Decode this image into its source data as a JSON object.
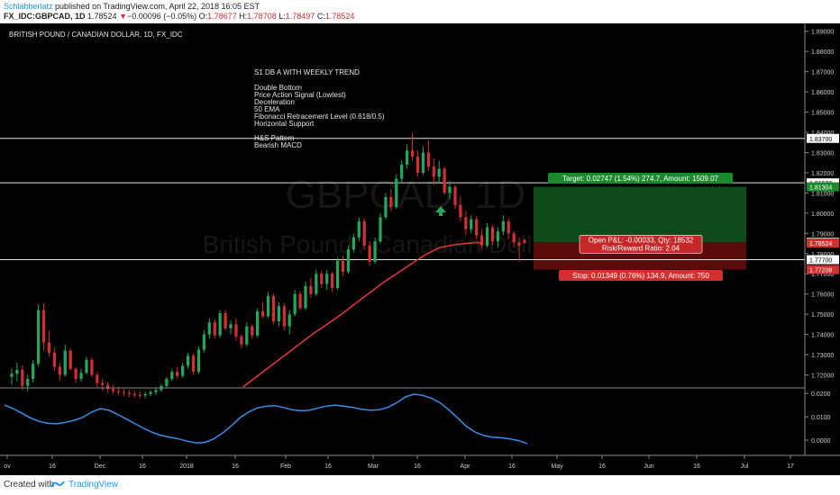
{
  "header": {
    "author": "Schlabberlatz",
    "published": " published on TradingView.com, April 22, 2018 16:05 EST",
    "symbol": "FX_IDC:GBPCAD, 1D",
    "last": "1.78524",
    "arrow": "▼",
    "change": "−0.00096 (−0.05%)",
    "ohlc_o_label": "O:",
    "ohlc_o": "1.78677",
    "ohlc_h_label": "H:",
    "ohlc_h": "1.78708",
    "ohlc_l_label": "L:",
    "ohlc_l": "1.78497",
    "ohlc_c_label": "C:",
    "ohlc_c": "1.78524"
  },
  "footer": {
    "created": "Created with",
    "brand": "TradingView"
  },
  "chart_data": {
    "type": "candlestick",
    "title": "BRITISH POUND / CANADIAN DOLLAR, 1D, FX_IDC",
    "watermark_symbol": "GBPCAD, 1D",
    "watermark_name": "British Pound / Canadian Dollar",
    "colors": {
      "up": "#26a65b",
      "down": "#d32f2f",
      "ema": "#e53935",
      "macd": "#3b8ee8",
      "target_zone": "#0e4a1a",
      "stop_zone": "#5a0b0b"
    },
    "y_ticks": [
      "1.89000",
      "1.88000",
      "1.87000",
      "1.86000",
      "1.85000",
      "1.84000",
      "1.83000",
      "1.82000",
      "1.81000",
      "1.80000",
      "1.79000",
      "1.78000",
      "1.77000",
      "1.76000",
      "1.75000",
      "1.74000",
      "1.73000",
      "1.72000"
    ],
    "ylim": [
      1.714,
      1.893
    ],
    "x_ticks": [
      "ov",
      "16",
      "Dec",
      "16",
      "2018",
      "16",
      "Feb",
      "16",
      "Mar",
      "16",
      "Apr",
      "16",
      "May",
      "16",
      "Jun",
      "16",
      "Jul",
      "17"
    ],
    "price_labels": [
      {
        "text": "1.83700",
        "value": 1.837,
        "kind": "line"
      },
      {
        "text": "1.81500",
        "value": 1.815,
        "kind": "line"
      },
      {
        "text": "1.81304",
        "value": 1.81304,
        "kind": "target"
      },
      {
        "text": "1.78557",
        "value": 1.78557,
        "kind": "line"
      },
      {
        "text": "1.78524",
        "value": 1.78524,
        "kind": "last"
      },
      {
        "text": "1.77700",
        "value": 1.777,
        "kind": "line"
      },
      {
        "text": "1.77208",
        "value": 1.77208,
        "kind": "stop"
      }
    ],
    "horizontal_lines": [
      1.837,
      1.815,
      1.777
    ],
    "annotation_title": "S1 DB A WITH WEEKLY TREND",
    "annotation_lines": [
      "Double Bottom",
      "Price Action Signal (Lowtest)",
      "Deceleration",
      "50 EMA",
      "Fibonacci Retracement Level (0.618/0.5)",
      "Horizontal Support",
      "",
      "H&S Pattern",
      "Bearish MACD"
    ],
    "position": {
      "target_label": "Target: 0.02747 (1.54%) 274.7, Amount: 1509.07",
      "pnl_label": "Open P&L: -0.00033, Qty: 18532",
      "rr_label": "Risk/Reward Ratio: 2.04",
      "stop_label": "Stop: 0.01349 (0.76%) 134.9, Amount: 750",
      "entry": 1.78557,
      "target": 1.81304,
      "stop": 1.77208
    },
    "candles": [
      [
        1.719,
        1.7232,
        1.715,
        1.7205
      ],
      [
        1.7205,
        1.726,
        1.7168,
        1.7225
      ],
      [
        1.7225,
        1.7248,
        1.7125,
        1.7145
      ],
      [
        1.7145,
        1.72,
        1.712,
        1.718
      ],
      [
        1.718,
        1.7275,
        1.7162,
        1.7255
      ],
      [
        1.7255,
        1.755,
        1.724,
        1.752
      ],
      [
        1.752,
        1.7555,
        1.732,
        1.736
      ],
      [
        1.736,
        1.742,
        1.729,
        1.731
      ],
      [
        1.731,
        1.7335,
        1.722,
        1.724
      ],
      [
        1.724,
        1.726,
        1.717,
        1.72
      ],
      [
        1.72,
        1.735,
        1.719,
        1.732
      ],
      [
        1.732,
        1.733,
        1.722,
        1.723
      ],
      [
        1.723,
        1.724,
        1.716,
        1.718
      ],
      [
        1.718,
        1.723,
        1.7165,
        1.721
      ],
      [
        1.721,
        1.729,
        1.72,
        1.7275
      ],
      [
        1.7275,
        1.7285,
        1.719,
        1.72
      ],
      [
        1.72,
        1.7215,
        1.714,
        1.716
      ],
      [
        1.716,
        1.718,
        1.712,
        1.715
      ],
      [
        1.715,
        1.7165,
        1.711,
        1.713
      ],
      [
        1.713,
        1.715,
        1.7105,
        1.712
      ],
      [
        1.712,
        1.714,
        1.71,
        1.7115
      ],
      [
        1.7115,
        1.713,
        1.7095,
        1.711
      ],
      [
        1.711,
        1.7125,
        1.709,
        1.7105
      ],
      [
        1.7105,
        1.712,
        1.7088,
        1.71
      ],
      [
        1.71,
        1.7118,
        1.7085,
        1.7098
      ],
      [
        1.7098,
        1.7115,
        1.7085,
        1.7105
      ],
      [
        1.7105,
        1.7125,
        1.7095,
        1.7115
      ],
      [
        1.7115,
        1.7135,
        1.71,
        1.7125
      ],
      [
        1.7125,
        1.7155,
        1.7115,
        1.7145
      ],
      [
        1.7145,
        1.719,
        1.7135,
        1.718
      ],
      [
        1.718,
        1.723,
        1.717,
        1.7215
      ],
      [
        1.7215,
        1.724,
        1.718,
        1.7195
      ],
      [
        1.7195,
        1.726,
        1.7185,
        1.7245
      ],
      [
        1.7245,
        1.731,
        1.723,
        1.7295
      ],
      [
        1.7295,
        1.7305,
        1.72,
        1.7215
      ],
      [
        1.7215,
        1.734,
        1.7205,
        1.7325
      ],
      [
        1.7325,
        1.742,
        1.731,
        1.74
      ],
      [
        1.74,
        1.748,
        1.738,
        1.746
      ],
      [
        1.746,
        1.7475,
        1.738,
        1.7395
      ],
      [
        1.7395,
        1.752,
        1.7385,
        1.7505
      ],
      [
        1.7505,
        1.752,
        1.742,
        1.743
      ],
      [
        1.743,
        1.747,
        1.74,
        1.745
      ],
      [
        1.745,
        1.748,
        1.737,
        1.739
      ],
      [
        1.739,
        1.74,
        1.733,
        1.735
      ],
      [
        1.735,
        1.746,
        1.734,
        1.744
      ],
      [
        1.744,
        1.745,
        1.738,
        1.7395
      ],
      [
        1.7395,
        1.753,
        1.7385,
        1.7515
      ],
      [
        1.7515,
        1.756,
        1.748,
        1.749
      ],
      [
        1.749,
        1.761,
        1.748,
        1.759
      ],
      [
        1.759,
        1.76,
        1.745,
        1.7465
      ],
      [
        1.7465,
        1.756,
        1.744,
        1.754
      ],
      [
        1.754,
        1.7555,
        1.742,
        1.744
      ],
      [
        1.744,
        1.752,
        1.74,
        1.75
      ],
      [
        1.75,
        1.762,
        1.749,
        1.76
      ],
      [
        1.76,
        1.7615,
        1.752,
        1.753
      ],
      [
        1.753,
        1.766,
        1.752,
        1.764
      ],
      [
        1.764,
        1.768,
        1.758,
        1.76
      ],
      [
        1.76,
        1.772,
        1.759,
        1.77
      ],
      [
        1.77,
        1.7715,
        1.763,
        1.765
      ],
      [
        1.765,
        1.772,
        1.762,
        1.77
      ],
      [
        1.77,
        1.771,
        1.761,
        1.763
      ],
      [
        1.763,
        1.778,
        1.762,
        1.7765
      ],
      [
        1.7765,
        1.779,
        1.769,
        1.771
      ],
      [
        1.771,
        1.784,
        1.77,
        1.782
      ],
      [
        1.782,
        1.79,
        1.7805,
        1.788
      ],
      [
        1.788,
        1.798,
        1.786,
        1.796
      ],
      [
        1.796,
        1.7975,
        1.782,
        1.784
      ],
      [
        1.784,
        1.786,
        1.774,
        1.776
      ],
      [
        1.776,
        1.788,
        1.775,
        1.786
      ],
      [
        1.786,
        1.8,
        1.785,
        1.798
      ],
      [
        1.798,
        1.81,
        1.797,
        1.808
      ],
      [
        1.808,
        1.812,
        1.801,
        1.803
      ],
      [
        1.803,
        1.819,
        1.802,
        1.817
      ],
      [
        1.817,
        1.826,
        1.815,
        1.824
      ],
      [
        1.824,
        1.834,
        1.822,
        1.831
      ],
      [
        1.831,
        1.84,
        1.826,
        1.828
      ],
      [
        1.828,
        1.831,
        1.818,
        1.82
      ],
      [
        1.82,
        1.833,
        1.819,
        1.83
      ],
      [
        1.83,
        1.836,
        1.821,
        1.823
      ],
      [
        1.823,
        1.827,
        1.814,
        1.818
      ],
      [
        1.818,
        1.826,
        1.815,
        1.822
      ],
      [
        1.822,
        1.823,
        1.809,
        1.81
      ],
      [
        1.81,
        1.816,
        1.807,
        1.813
      ],
      [
        1.813,
        1.814,
        1.802,
        1.804
      ],
      [
        1.804,
        1.808,
        1.796,
        1.798
      ],
      [
        1.798,
        1.801,
        1.789,
        1.792
      ],
      [
        1.792,
        1.799,
        1.79,
        1.797
      ],
      [
        1.797,
        1.7985,
        1.787,
        1.789
      ],
      [
        1.789,
        1.792,
        1.782,
        1.784
      ],
      [
        1.784,
        1.795,
        1.783,
        1.793
      ],
      [
        1.793,
        1.794,
        1.784,
        1.786
      ],
      [
        1.786,
        1.793,
        1.783,
        1.791
      ],
      [
        1.791,
        1.799,
        1.789,
        1.796
      ],
      [
        1.796,
        1.7975,
        1.787,
        1.79
      ],
      [
        1.79,
        1.791,
        1.783,
        1.7855
      ],
      [
        1.7855,
        1.788,
        1.776,
        1.784
      ],
      [
        1.7868,
        1.7871,
        1.785,
        1.7852
      ]
    ],
    "ema_50": [
      [
        0.44,
        1.714
      ],
      [
        0.47,
        1.72
      ],
      [
        0.52,
        1.73
      ],
      [
        0.57,
        1.74
      ],
      [
        0.62,
        1.749
      ],
      [
        0.66,
        1.757
      ],
      [
        0.7,
        1.765
      ],
      [
        0.74,
        1.772
      ],
      [
        0.78,
        1.779
      ],
      [
        0.81,
        1.783
      ],
      [
        0.84,
        1.7845
      ],
      [
        0.86,
        1.785
      ],
      [
        0.88,
        1.7855
      ],
      [
        0.89,
        1.785
      ]
    ],
    "macd": {
      "ylim": [
        -0.005,
        0.022
      ],
      "ticks": [
        "0.0200",
        "0.0100",
        "0.0000"
      ],
      "values": [
        0.015,
        0.0135,
        0.0115,
        0.0095,
        0.008,
        0.0072,
        0.007,
        0.0076,
        0.0085,
        0.0098,
        0.012,
        0.0135,
        0.0128,
        0.011,
        0.009,
        0.007,
        0.005,
        0.0033,
        0.002,
        0.0012,
        0.0005,
        -0.0005,
        -0.0012,
        -0.001,
        0.0005,
        0.003,
        0.006,
        0.0095,
        0.012,
        0.0138,
        0.0145,
        0.0148,
        0.014,
        0.013,
        0.0126,
        0.0128,
        0.0138,
        0.0146,
        0.015,
        0.0145,
        0.014,
        0.0132,
        0.0128,
        0.013,
        0.014,
        0.016,
        0.0185,
        0.0197,
        0.0192,
        0.018,
        0.016,
        0.013,
        0.0095,
        0.006,
        0.0035,
        0.002,
        0.0013,
        0.001,
        0.0005,
        -0.0002,
        -0.0015
      ]
    }
  }
}
